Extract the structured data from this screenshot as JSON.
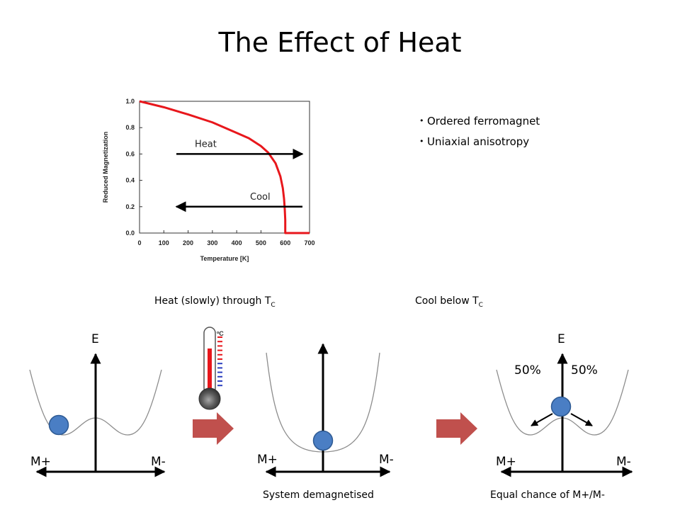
{
  "title": "The Effect of Heat",
  "bullets": [
    "Ordered ferromagnet",
    "Uniaxial anisotropy"
  ],
  "chart_data": {
    "type": "line",
    "title": "",
    "xlabel": "Temperature [K]",
    "ylabel": "Reduced Magnetization",
    "xlim": [
      0,
      700
    ],
    "ylim": [
      0,
      1.0
    ],
    "xticks": [
      "0",
      "100",
      "200",
      "300",
      "400",
      "500",
      "600",
      "700"
    ],
    "yticks": [
      "0.0",
      "0.2",
      "0.4",
      "0.6",
      "0.8",
      "1.0"
    ],
    "grid": false,
    "series": [
      {
        "color": "#e8171c",
        "x": [
          0,
          100,
          200,
          300,
          400,
          450,
          500,
          530,
          560,
          580,
          590,
          595,
          598,
          600,
          600,
          650,
          700
        ],
        "y": [
          1.0,
          0.955,
          0.9,
          0.84,
          0.76,
          0.72,
          0.66,
          0.61,
          0.53,
          0.43,
          0.34,
          0.26,
          0.18,
          0.1,
          0.0,
          0.0,
          0.0
        ]
      }
    ],
    "annotations": [
      {
        "text": "Heat",
        "arrow_direction": "right",
        "y": 0.6
      },
      {
        "text": "Cool",
        "arrow_direction": "left",
        "y": 0.2
      }
    ]
  },
  "captions": {
    "heat_through_prefix": "Heat (slowly) through T",
    "heat_through_sub": "C",
    "cool_below_prefix": "Cool below T",
    "cool_below_sub": "C",
    "system_demagnetised": "System demagnetised",
    "equal_chance": "Equal chance of M+/M-"
  },
  "panels": {
    "left": {
      "energy_label": "E",
      "m_plus": "M+",
      "m_minus": "M-"
    },
    "middle": {
      "m_plus": "M+",
      "m_minus": "M-"
    },
    "right": {
      "energy_label": "E",
      "m_plus": "M+",
      "m_minus": "M-",
      "left_percent": "50%",
      "right_percent": "50%"
    }
  },
  "thermometer": {
    "unit_label": "ºC"
  },
  "colors": {
    "curve": "#e8171c",
    "ball": "#4a7ec4",
    "ball_outline": "#2e5a93",
    "block_arrow": "#c0504d",
    "potential": "#8c8c8c"
  }
}
